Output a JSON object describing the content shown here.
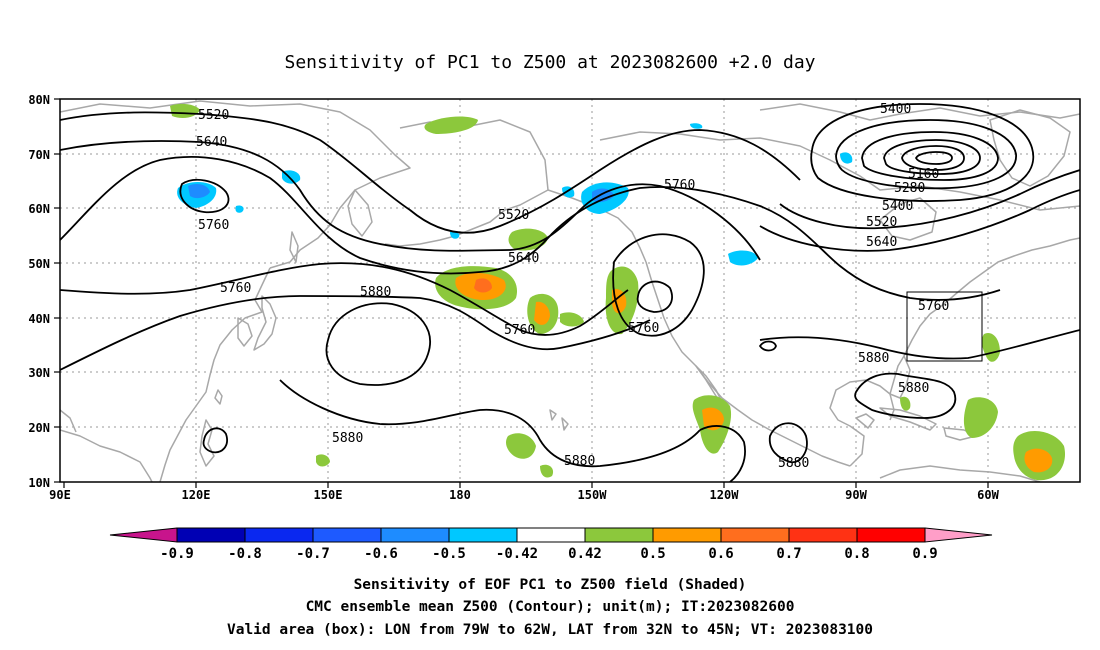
{
  "figure": {
    "title": "Sensitivity of PC1 to Z500 at 2023082600 +2.0 day"
  },
  "map": {
    "lon_labels": [
      "90E",
      "120E",
      "150E",
      "180",
      "150W",
      "120W",
      "90W",
      "60W"
    ],
    "lat_labels": [
      "80N",
      "70N",
      "60N",
      "50N",
      "40N",
      "30N",
      "20N",
      "10N"
    ],
    "contour_labels": {
      "c1": "5520",
      "c2": "5640",
      "c3": "5760",
      "c4": "5760",
      "c5": "5880",
      "c6": "5520",
      "c7": "5640",
      "c8": "5760",
      "c9": "5760",
      "c10": "5760",
      "c11": "5400",
      "c12": "5160",
      "c13": "5280",
      "c14": "5400",
      "c15": "5520",
      "c16": "5640",
      "c17": "5760",
      "c18": "5880",
      "c19": "5880",
      "c20": "5880",
      "c21": "5880",
      "c22": "5880"
    },
    "valid_box": {
      "lon_min": -79,
      "lon_max": -62,
      "lat_min": 32,
      "lat_max": 45
    }
  },
  "colorbar": {
    "labels": [
      "-0.9",
      "-0.8",
      "-0.7",
      "-0.6",
      "-0.5",
      "-0.42",
      "0.42",
      "0.5",
      "0.6",
      "0.7",
      "0.8",
      "0.9"
    ],
    "colors": {
      "below": "#c8148c",
      "bins": [
        "#0000b4",
        "#0a28f0",
        "#1e5aff",
        "#1e8cff",
        "#00c8ff",
        "#ffffff",
        "#8cc83c",
        "#ff9b00",
        "#ff6e1e",
        "#ff3214",
        "#ff0000"
      ],
      "above": "#ff9ec8"
    }
  },
  "caption": {
    "line1": "Sensitivity of EOF PC1 to Z500 field (Shaded)",
    "line2": "CMC ensemble mean Z500 (Contour); unit(m); IT:2023082600",
    "line3": "Valid area (box): LON from 79W to 62W, LAT from 32N to 45N; VT: 2023083100"
  }
}
